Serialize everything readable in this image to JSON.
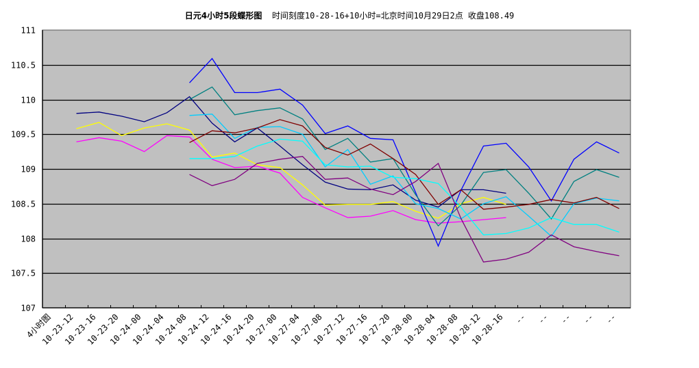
{
  "chart_data": {
    "type": "line",
    "title": "日元4小时5段蝶形图",
    "subtitle": "时间刻度10-28-16+10小时=北京时间10月29日2点 收盘108.49",
    "xlabel": "",
    "ylabel": "",
    "ylim": [
      107,
      111
    ],
    "yticks": [
      "111",
      "110.5",
      "110",
      "109.5",
      "109",
      "108.5",
      "108",
      "107.5",
      "107"
    ],
    "grid": true,
    "legend": "none",
    "background": "#c0c0c0",
    "categories": [
      "4小时图",
      "10-23-12",
      "10-23-16",
      "10-23-20",
      "10-24-00",
      "10-24-04",
      "10-24-08",
      "10-24-12",
      "10-24-16",
      "10-24-20",
      "10-27-00",
      "10-27-04",
      "10-27-08",
      "10-27-12",
      "10-27-16",
      "10-27-20",
      "10-28-00",
      "10-28-04",
      "10-28-08",
      "10-28-12",
      "10-28-16",
      "--",
      "--",
      "--",
      "--",
      "--"
    ],
    "series": [
      {
        "name": "navy",
        "color": "#000080",
        "values": [
          null,
          109.8,
          109.82,
          109.76,
          109.68,
          109.81,
          110.04,
          109.66,
          109.39,
          109.59,
          109.33,
          109.06,
          108.81,
          108.71,
          108.7,
          108.77,
          108.55,
          108.45,
          108.7,
          108.7,
          108.65,
          null,
          null,
          null,
          null,
          null
        ]
      },
      {
        "name": "yellow",
        "color": "#ffff00",
        "values": [
          null,
          109.58,
          109.67,
          109.48,
          109.59,
          109.65,
          109.56,
          109.17,
          109.23,
          109.06,
          109.02,
          108.77,
          108.48,
          108.49,
          108.49,
          108.53,
          108.39,
          108.29,
          108.5,
          108.59,
          108.49,
          null,
          null,
          null,
          null,
          null
        ]
      },
      {
        "name": "magenta",
        "color": "#ff00ff",
        "values": [
          null,
          109.39,
          109.45,
          109.4,
          109.25,
          109.48,
          109.46,
          109.14,
          109.02,
          109.04,
          108.94,
          108.59,
          108.44,
          108.3,
          108.32,
          108.4,
          108.27,
          108.22,
          108.24,
          108.27,
          108.3,
          null,
          null,
          null,
          null,
          null
        ]
      },
      {
        "name": "blue",
        "color": "#0000ff",
        "values": [
          null,
          null,
          null,
          null,
          null,
          null,
          110.24,
          110.59,
          110.1,
          110.1,
          110.15,
          109.92,
          109.51,
          109.62,
          109.44,
          109.42,
          108.66,
          107.89,
          108.69,
          109.33,
          109.37,
          109.03,
          108.54,
          109.14,
          109.39,
          109.23
        ]
      },
      {
        "name": "teal",
        "color": "#008080",
        "values": [
          null,
          null,
          null,
          null,
          null,
          null,
          110.0,
          110.18,
          109.78,
          109.84,
          109.88,
          109.72,
          109.28,
          109.44,
          109.1,
          109.15,
          108.63,
          108.18,
          108.48,
          108.95,
          108.99,
          108.65,
          108.28,
          108.82,
          108.99,
          108.88
        ]
      },
      {
        "name": "sky",
        "color": "#00ccff",
        "values": [
          null,
          null,
          null,
          null,
          null,
          null,
          109.77,
          109.79,
          109.44,
          109.6,
          109.61,
          109.5,
          109.03,
          109.28,
          108.78,
          108.9,
          108.5,
          108.43,
          108.28,
          108.5,
          108.6,
          108.32,
          108.03,
          108.5,
          108.58,
          108.54
        ]
      },
      {
        "name": "darkred",
        "color": "#800000",
        "values": [
          null,
          null,
          null,
          null,
          null,
          null,
          109.38,
          109.55,
          109.52,
          109.59,
          109.71,
          109.62,
          109.31,
          109.2,
          109.36,
          109.15,
          108.92,
          108.49,
          108.7,
          108.42,
          108.45,
          108.49,
          108.56,
          108.51,
          108.59,
          108.43
        ]
      },
      {
        "name": "cyan",
        "color": "#00ffff",
        "values": [
          null,
          null,
          null,
          null,
          null,
          null,
          109.15,
          109.15,
          109.18,
          109.33,
          109.43,
          109.4,
          109.06,
          109.03,
          109.04,
          108.88,
          108.86,
          108.79,
          108.45,
          108.05,
          108.07,
          108.15,
          108.3,
          108.2,
          108.2,
          108.09
        ]
      },
      {
        "name": "purple",
        "color": "#800080",
        "values": [
          null,
          null,
          null,
          null,
          null,
          null,
          108.92,
          108.76,
          108.85,
          109.08,
          109.14,
          109.18,
          108.85,
          108.87,
          108.71,
          108.63,
          108.82,
          109.08,
          108.29,
          107.66,
          107.7,
          107.8,
          108.05,
          107.88,
          107.81,
          107.75
        ]
      }
    ]
  }
}
